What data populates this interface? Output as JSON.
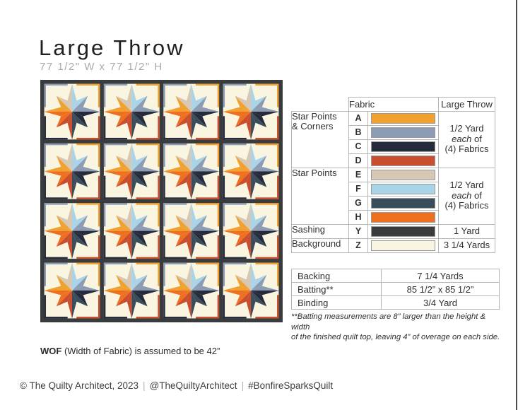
{
  "page": {
    "title": "Large Throw",
    "subtitle": "77 1/2\" W x 77 1/2\" H"
  },
  "quilt": {
    "grid": {
      "rows": 4,
      "cols": 4
    },
    "block_name": "star-block",
    "colors": {
      "A": "#F0A12F",
      "B": "#8C9CB4",
      "C": "#252B3B",
      "D": "#C94E2D",
      "E": "#D6C8B4",
      "F": "#A9D4E8",
      "G": "#394D5C",
      "H": "#EF6F21",
      "Y": "#393B3D",
      "Z": "#FAF5E1"
    },
    "star_color_sequence": [
      "E",
      "F",
      "B",
      "C",
      "G",
      "D",
      "H",
      "A"
    ],
    "corner_fabrics": {
      "top_left": "B",
      "top_right": "A",
      "bottom_left": "C",
      "bottom_right": "D"
    },
    "sashing_fabric": "Y",
    "background_fabric": "Z"
  },
  "fabric_table": {
    "header_fabric": "Fabric",
    "header_yardage": "Large Throw",
    "groups": [
      {
        "label_line1": "Star Points",
        "label_line2": "& Corners",
        "letters": [
          "A",
          "B",
          "C",
          "D"
        ],
        "yard_line1": "1/2 Yard",
        "yard_each": "each",
        "yard_of": " of",
        "yard_line3": "(4) Fabrics"
      },
      {
        "label_line1": "Star Points",
        "label_line2": "",
        "letters": [
          "E",
          "F",
          "G",
          "H"
        ],
        "yard_line1": "1/2 Yard",
        "yard_each": "each",
        "yard_of": " of",
        "yard_line3": "(4) Fabrics"
      }
    ],
    "single_rows": [
      {
        "label": "Sashing",
        "letter": "Y",
        "yardage": "1 Yard"
      },
      {
        "label": "Background",
        "letter": "Z",
        "yardage": "3 1/4 Yards"
      }
    ]
  },
  "supplies_table": {
    "rows": [
      {
        "label": "Backing",
        "value": "7 1/4 Yards"
      },
      {
        "label": "Batting**",
        "value": "85 1/2” x 85 1/2”"
      },
      {
        "label": "Binding",
        "value": "3/4 Yard"
      }
    ],
    "footnote_line1": "**Batting measurements are 8” larger than the height & width",
    "footnote_line2": "of the finished quilt top, leaving 4” of overage on each side."
  },
  "notes": {
    "wof_bold": "WOF",
    "wof_rest": " (Width of Fabric) is assumed to be 42”"
  },
  "footer": {
    "part1": "© The Quilty Architect, 2023",
    "part2": "@TheQuiltyArchitect",
    "part3": "#BonfireSparksQuilt",
    "sep": "|"
  }
}
